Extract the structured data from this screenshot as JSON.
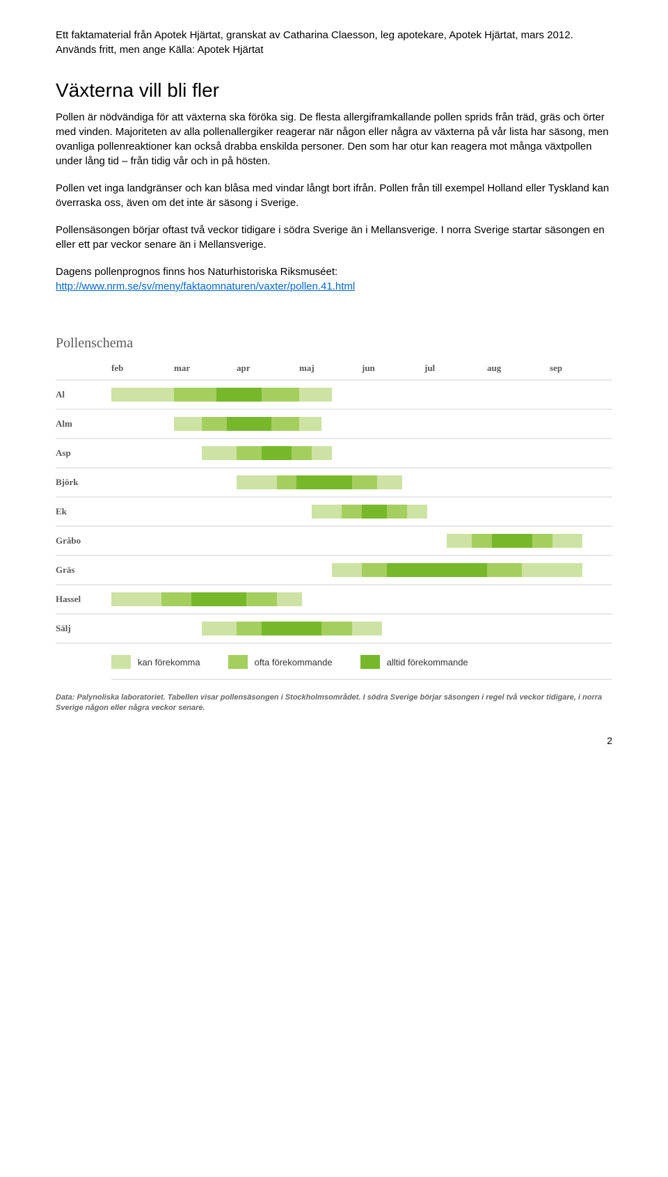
{
  "intro": "Ett faktamaterial från Apotek Hjärtat, granskat av Catharina Claesson, leg apotekare, Apotek Hjärtat, mars 2012. Används fritt, men ange Källa: Apotek Hjärtat",
  "heading": "Växterna vill bli fler",
  "para1": "Pollen är nödvändiga för att växterna ska föröka sig. De flesta allergiframkallande pollen sprids från träd, gräs och örter med vinden. Majoriteten av alla pollenallergiker reagerar när någon eller några av växterna på vår lista har säsong, men ovanliga pollenreaktioner kan också drabba enskilda personer. Den som har otur kan reagera mot många växtpollen under lång tid – från tidig vår och in på hösten.",
  "para2": "Pollen vet inga landgränser och kan blåsa med vindar långt bort ifrån. Pollen från till exempel Holland eller Tyskland kan överraska oss, även om det inte är säsong i Sverige.",
  "para3": "Pollensäsongen börjar oftast två veckor tidigare i södra Sverige än i Mellansverige. I norra Sverige startar säsongen en eller ett par veckor senare än i Mellansverige.",
  "para4_prefix": "Dagens pollenprognos finns hos Naturhistoriska Riksmuséet: ",
  "para4_link": "http://www.nrm.se/sv/meny/faktaomnaturen/vaxter/pollen.41.html",
  "chart": {
    "title": "Pollenschema",
    "months": [
      "feb",
      "mar",
      "apr",
      "maj",
      "jun",
      "jul",
      "aug",
      "sep"
    ],
    "colors": {
      "low": "#cde3a3",
      "mid": "#a4cf5e",
      "high": "#76b82a",
      "grid": "#e8e8e8",
      "text": "#5a5a5a"
    },
    "label_col_width_pct": 10,
    "plants": [
      {
        "name": "Al",
        "segments": [
          {
            "start": 0,
            "end": 12.5,
            "level": "low"
          },
          {
            "start": 12.5,
            "end": 21,
            "level": "mid"
          },
          {
            "start": 21,
            "end": 30,
            "level": "high"
          },
          {
            "start": 30,
            "end": 37.5,
            "level": "mid"
          },
          {
            "start": 37.5,
            "end": 44,
            "level": "low"
          }
        ]
      },
      {
        "name": "Alm",
        "segments": [
          {
            "start": 12.5,
            "end": 18,
            "level": "low"
          },
          {
            "start": 18,
            "end": 23,
            "level": "mid"
          },
          {
            "start": 23,
            "end": 32,
            "level": "high"
          },
          {
            "start": 32,
            "end": 37.5,
            "level": "mid"
          },
          {
            "start": 37.5,
            "end": 42,
            "level": "low"
          }
        ]
      },
      {
        "name": "Asp",
        "segments": [
          {
            "start": 18,
            "end": 25,
            "level": "low"
          },
          {
            "start": 25,
            "end": 30,
            "level": "mid"
          },
          {
            "start": 30,
            "end": 36,
            "level": "high"
          },
          {
            "start": 36,
            "end": 40,
            "level": "mid"
          },
          {
            "start": 40,
            "end": 44,
            "level": "low"
          }
        ]
      },
      {
        "name": "Björk",
        "segments": [
          {
            "start": 25,
            "end": 33,
            "level": "low"
          },
          {
            "start": 33,
            "end": 37,
            "level": "mid"
          },
          {
            "start": 37,
            "end": 48,
            "level": "high"
          },
          {
            "start": 48,
            "end": 53,
            "level": "mid"
          },
          {
            "start": 53,
            "end": 58,
            "level": "low"
          }
        ]
      },
      {
        "name": "Ek",
        "segments": [
          {
            "start": 40,
            "end": 46,
            "level": "low"
          },
          {
            "start": 46,
            "end": 50,
            "level": "mid"
          },
          {
            "start": 50,
            "end": 55,
            "level": "high"
          },
          {
            "start": 55,
            "end": 59,
            "level": "mid"
          },
          {
            "start": 59,
            "end": 63,
            "level": "low"
          }
        ]
      },
      {
        "name": "Gråbo",
        "segments": [
          {
            "start": 67,
            "end": 72,
            "level": "low"
          },
          {
            "start": 72,
            "end": 76,
            "level": "mid"
          },
          {
            "start": 76,
            "end": 84,
            "level": "high"
          },
          {
            "start": 84,
            "end": 88,
            "level": "mid"
          },
          {
            "start": 88,
            "end": 94,
            "level": "low"
          }
        ]
      },
      {
        "name": "Gräs",
        "segments": [
          {
            "start": 44,
            "end": 50,
            "level": "low"
          },
          {
            "start": 50,
            "end": 55,
            "level": "mid"
          },
          {
            "start": 55,
            "end": 75,
            "level": "high"
          },
          {
            "start": 75,
            "end": 82,
            "level": "mid"
          },
          {
            "start": 82,
            "end": 94,
            "level": "low"
          }
        ]
      },
      {
        "name": "Hassel",
        "segments": [
          {
            "start": 0,
            "end": 10,
            "level": "low"
          },
          {
            "start": 10,
            "end": 16,
            "level": "mid"
          },
          {
            "start": 16,
            "end": 27,
            "level": "high"
          },
          {
            "start": 27,
            "end": 33,
            "level": "mid"
          },
          {
            "start": 33,
            "end": 38,
            "level": "low"
          }
        ]
      },
      {
        "name": "Sälj",
        "segments": [
          {
            "start": 18,
            "end": 25,
            "level": "low"
          },
          {
            "start": 25,
            "end": 30,
            "level": "mid"
          },
          {
            "start": 30,
            "end": 42,
            "level": "high"
          },
          {
            "start": 42,
            "end": 48,
            "level": "mid"
          },
          {
            "start": 48,
            "end": 54,
            "level": "low"
          }
        ]
      }
    ],
    "legend": [
      {
        "level": "low",
        "label": "kan förekomma"
      },
      {
        "level": "mid",
        "label": "ofta förekommande"
      },
      {
        "level": "high",
        "label": "alltid förekommande"
      }
    ],
    "footnote": "Data: Palynoliska laboratoriet. Tabellen visar pollensäsongen i Stockholmsområdet. I södra Sverige börjar säsongen i regel två veckor tidigare, i norra Sverige någon eller några veckor senare."
  },
  "page_number": "2"
}
